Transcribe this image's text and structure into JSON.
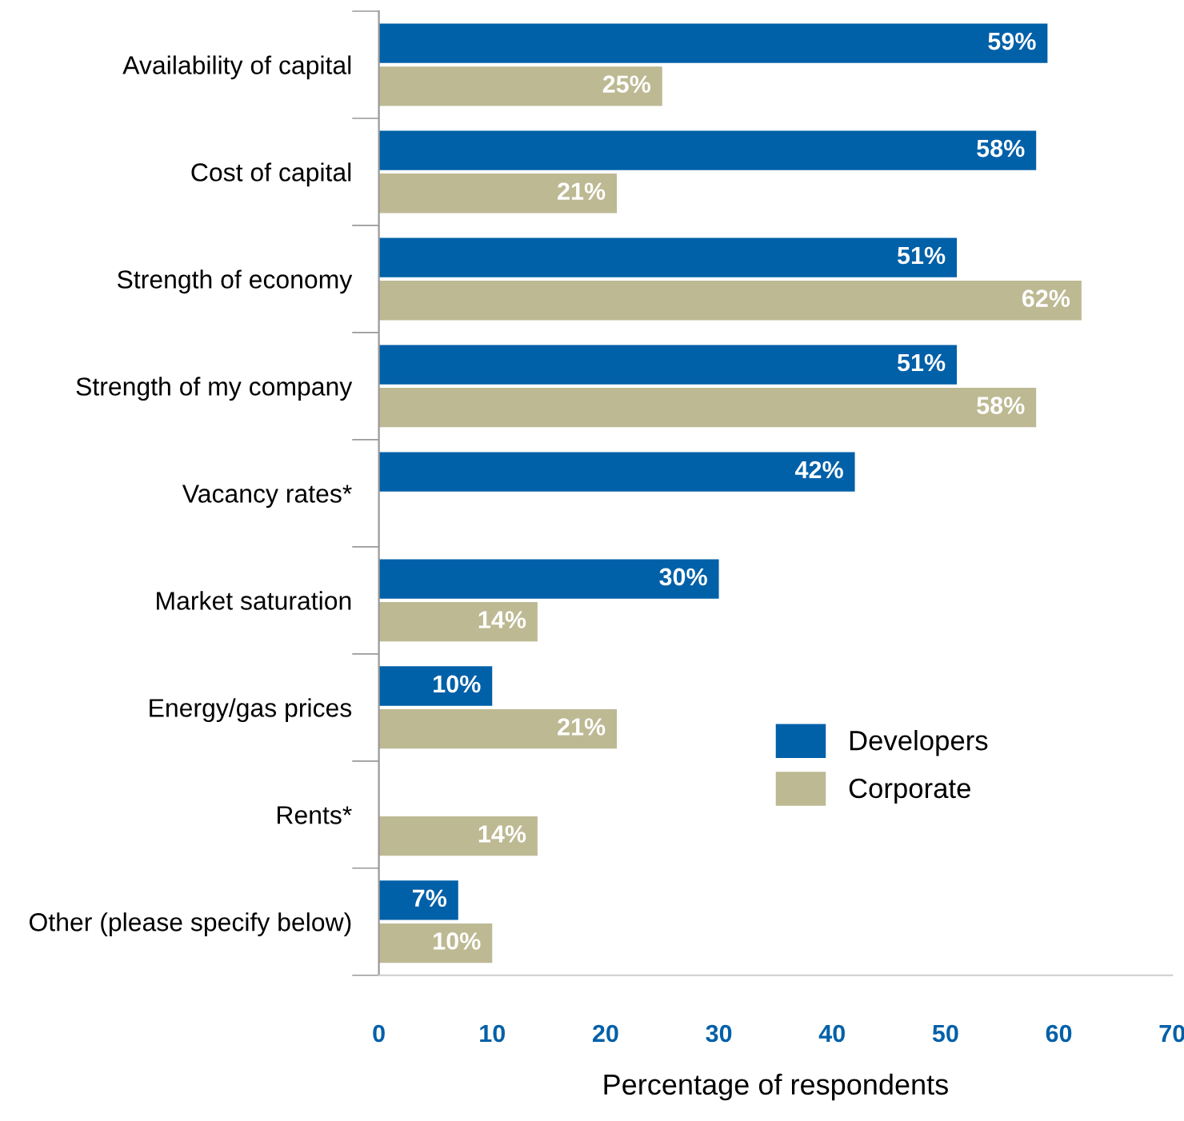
{
  "chart_data": {
    "type": "bar",
    "orientation": "horizontal",
    "xlabel": "Percentage of respondents",
    "categories": [
      "Availability of capital",
      "Cost of capital",
      "Strength of economy",
      "Strength of my company",
      "Vacancy rates*",
      "Market saturation",
      "Energy/gas prices",
      "Rents*",
      "Other (please specify below)"
    ],
    "series": [
      {
        "name": "Developers",
        "color": "#0060a8",
        "values": [
          59,
          58,
          51,
          51,
          42,
          30,
          10,
          null,
          7
        ],
        "value_labels": [
          "59%",
          "58%",
          "51%",
          "51%",
          "42%",
          "30%",
          "10%",
          null,
          "7%"
        ]
      },
      {
        "name": "Corporate",
        "color": "#bdb993",
        "values": [
          25,
          21,
          62,
          58,
          null,
          14,
          21,
          14,
          10
        ],
        "value_labels": [
          "25%",
          "21%",
          "62%",
          "58%",
          null,
          "14%",
          "21%",
          "14%",
          "10%"
        ]
      }
    ],
    "xlim": [
      0,
      70
    ],
    "xticks": [
      0,
      10,
      20,
      30,
      40,
      50,
      60,
      70
    ],
    "grid": false,
    "legend": "bottom right"
  }
}
